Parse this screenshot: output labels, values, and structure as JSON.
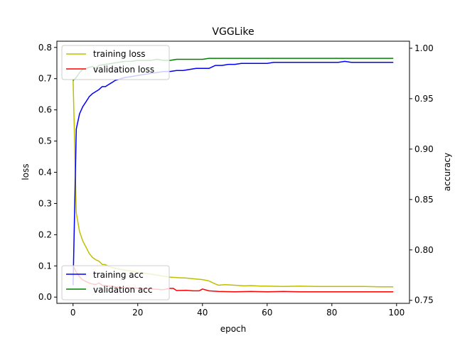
{
  "chart_data": {
    "type": "line",
    "title": "VGGLike",
    "xlabel": "epoch",
    "ylabel_left": "loss",
    "ylabel_right": "accuracy",
    "xlim": [
      -5,
      104
    ],
    "ylim_left": [
      -0.02,
      0.82
    ],
    "ylim_right": [
      0.747,
      1.007
    ],
    "x_ticks": [
      0,
      20,
      40,
      60,
      80,
      100
    ],
    "y_ticks_left": [
      0.0,
      0.1,
      0.2,
      0.3,
      0.4,
      0.5,
      0.6,
      0.7,
      0.8
    ],
    "y_ticks_right": [
      0.75,
      0.8,
      0.85,
      0.9,
      0.95,
      1.0
    ],
    "x_tick_labels": [
      "0",
      "20",
      "40",
      "60",
      "80",
      "100"
    ],
    "y_tick_labels_left": [
      "0.0",
      "0.1",
      "0.2",
      "0.3",
      "0.4",
      "0.5",
      "0.6",
      "0.7",
      "0.8"
    ],
    "y_tick_labels_right": [
      "0.75",
      "0.80",
      "0.85",
      "0.90",
      "0.95",
      "1.00"
    ],
    "grid": false,
    "legends": [
      {
        "placement": "top-left",
        "entries": [
          "training loss",
          "validation loss"
        ]
      },
      {
        "placement": "bottom-left",
        "entries": [
          "training acc",
          "validation acc"
        ]
      }
    ],
    "series": [
      {
        "name": "training loss",
        "color": "#bfbf00",
        "axis": "left",
        "points": [
          [
            0,
            0.7
          ],
          [
            1,
            0.27
          ],
          [
            2,
            0.21
          ],
          [
            3,
            0.18
          ],
          [
            4,
            0.16
          ],
          [
            5,
            0.14
          ],
          [
            6,
            0.127
          ],
          [
            7,
            0.12
          ],
          [
            8,
            0.115
          ],
          [
            9,
            0.105
          ],
          [
            10,
            0.104
          ],
          [
            11,
            0.098
          ],
          [
            12,
            0.095
          ],
          [
            14,
            0.09
          ],
          [
            16,
            0.086
          ],
          [
            18,
            0.083
          ],
          [
            20,
            0.08
          ],
          [
            22,
            0.077
          ],
          [
            25,
            0.072
          ],
          [
            28,
            0.067
          ],
          [
            30,
            0.064
          ],
          [
            33,
            0.062
          ],
          [
            35,
            0.061
          ],
          [
            38,
            0.058
          ],
          [
            40,
            0.056
          ],
          [
            42,
            0.052
          ],
          [
            44,
            0.042
          ],
          [
            45,
            0.038
          ],
          [
            47,
            0.04
          ],
          [
            50,
            0.038
          ],
          [
            53,
            0.036
          ],
          [
            55,
            0.037
          ],
          [
            58,
            0.035
          ],
          [
            60,
            0.035
          ],
          [
            65,
            0.034
          ],
          [
            70,
            0.035
          ],
          [
            75,
            0.034
          ],
          [
            80,
            0.034
          ],
          [
            85,
            0.034
          ],
          [
            90,
            0.034
          ],
          [
            95,
            0.033
          ],
          [
            99,
            0.033
          ]
        ]
      },
      {
        "name": "validation loss",
        "color": "#ff0000",
        "axis": "left",
        "points": [
          [
            0,
            0.1
          ],
          [
            1,
            0.08
          ],
          [
            2,
            0.065
          ],
          [
            3,
            0.055
          ],
          [
            4,
            0.05
          ],
          [
            5,
            0.045
          ],
          [
            6,
            0.042
          ],
          [
            7,
            0.04
          ],
          [
            8,
            0.045
          ],
          [
            9,
            0.038
          ],
          [
            10,
            0.036
          ],
          [
            12,
            0.034
          ],
          [
            14,
            0.032
          ],
          [
            16,
            0.03
          ],
          [
            18,
            0.03
          ],
          [
            20,
            0.028
          ],
          [
            22,
            0.027
          ],
          [
            24,
            0.026
          ],
          [
            26,
            0.025
          ],
          [
            28,
            0.024
          ],
          [
            30,
            0.028
          ],
          [
            31,
            0.028
          ],
          [
            32,
            0.021
          ],
          [
            35,
            0.022
          ],
          [
            37,
            0.02
          ],
          [
            39,
            0.02
          ],
          [
            40,
            0.026
          ],
          [
            42,
            0.02
          ],
          [
            45,
            0.018
          ],
          [
            50,
            0.017
          ],
          [
            55,
            0.018
          ],
          [
            60,
            0.017
          ],
          [
            65,
            0.018
          ],
          [
            70,
            0.017
          ],
          [
            75,
            0.017
          ],
          [
            80,
            0.017
          ],
          [
            85,
            0.017
          ],
          [
            90,
            0.017
          ],
          [
            95,
            0.017
          ],
          [
            99,
            0.017
          ]
        ]
      },
      {
        "name": "training acc",
        "color": "#0000ff",
        "axis": "right",
        "points": [
          [
            0,
            0.765
          ],
          [
            1,
            0.92
          ],
          [
            2,
            0.935
          ],
          [
            3,
            0.942
          ],
          [
            4,
            0.947
          ],
          [
            5,
            0.952
          ],
          [
            6,
            0.955
          ],
          [
            7,
            0.957
          ],
          [
            8,
            0.959
          ],
          [
            9,
            0.962
          ],
          [
            10,
            0.962
          ],
          [
            11,
            0.964
          ],
          [
            12,
            0.966
          ],
          [
            13,
            0.968
          ],
          [
            14,
            0.969
          ],
          [
            15,
            0.97
          ],
          [
            16,
            0.971
          ],
          [
            18,
            0.972
          ],
          [
            20,
            0.973
          ],
          [
            22,
            0.974
          ],
          [
            24,
            0.975
          ],
          [
            26,
            0.976
          ],
          [
            28,
            0.977
          ],
          [
            30,
            0.977
          ],
          [
            32,
            0.978
          ],
          [
            34,
            0.978
          ],
          [
            36,
            0.979
          ],
          [
            38,
            0.98
          ],
          [
            40,
            0.98
          ],
          [
            42,
            0.98
          ],
          [
            44,
            0.983
          ],
          [
            46,
            0.983
          ],
          [
            48,
            0.984
          ],
          [
            50,
            0.984
          ],
          [
            52,
            0.985
          ],
          [
            54,
            0.985
          ],
          [
            56,
            0.985
          ],
          [
            58,
            0.985
          ],
          [
            60,
            0.985
          ],
          [
            62,
            0.986
          ],
          [
            64,
            0.986
          ],
          [
            66,
            0.986
          ],
          [
            68,
            0.986
          ],
          [
            70,
            0.986
          ],
          [
            72,
            0.986
          ],
          [
            74,
            0.986
          ],
          [
            76,
            0.986
          ],
          [
            78,
            0.986
          ],
          [
            80,
            0.986
          ],
          [
            82,
            0.986
          ],
          [
            84,
            0.987
          ],
          [
            86,
            0.986
          ],
          [
            88,
            0.986
          ],
          [
            90,
            0.986
          ],
          [
            92,
            0.986
          ],
          [
            94,
            0.986
          ],
          [
            96,
            0.986
          ],
          [
            99,
            0.986
          ]
        ]
      },
      {
        "name": "validation acc",
        "color": "#008000",
        "axis": "right",
        "points": [
          [
            0,
            0.968
          ],
          [
            1,
            0.971
          ],
          [
            2,
            0.976
          ],
          [
            3,
            0.979
          ],
          [
            4,
            0.98
          ],
          [
            5,
            0.981
          ],
          [
            6,
            0.982
          ],
          [
            7,
            0.98
          ],
          [
            8,
            0.983
          ],
          [
            10,
            0.984
          ],
          [
            12,
            0.985
          ],
          [
            14,
            0.986
          ],
          [
            16,
            0.987
          ],
          [
            18,
            0.987
          ],
          [
            20,
            0.988
          ],
          [
            22,
            0.988
          ],
          [
            24,
            0.988
          ],
          [
            26,
            0.989
          ],
          [
            28,
            0.988
          ],
          [
            30,
            0.988
          ],
          [
            32,
            0.989
          ],
          [
            34,
            0.989
          ],
          [
            36,
            0.989
          ],
          [
            38,
            0.989
          ],
          [
            40,
            0.989
          ],
          [
            42,
            0.99
          ],
          [
            44,
            0.99
          ],
          [
            46,
            0.99
          ],
          [
            48,
            0.99
          ],
          [
            50,
            0.99
          ],
          [
            52,
            0.99
          ],
          [
            54,
            0.99
          ],
          [
            56,
            0.99
          ],
          [
            58,
            0.99
          ],
          [
            60,
            0.99
          ],
          [
            65,
            0.99
          ],
          [
            70,
            0.99
          ],
          [
            75,
            0.99
          ],
          [
            80,
            0.99
          ],
          [
            85,
            0.99
          ],
          [
            90,
            0.99
          ],
          [
            95,
            0.99
          ],
          [
            99,
            0.99
          ]
        ]
      }
    ]
  }
}
